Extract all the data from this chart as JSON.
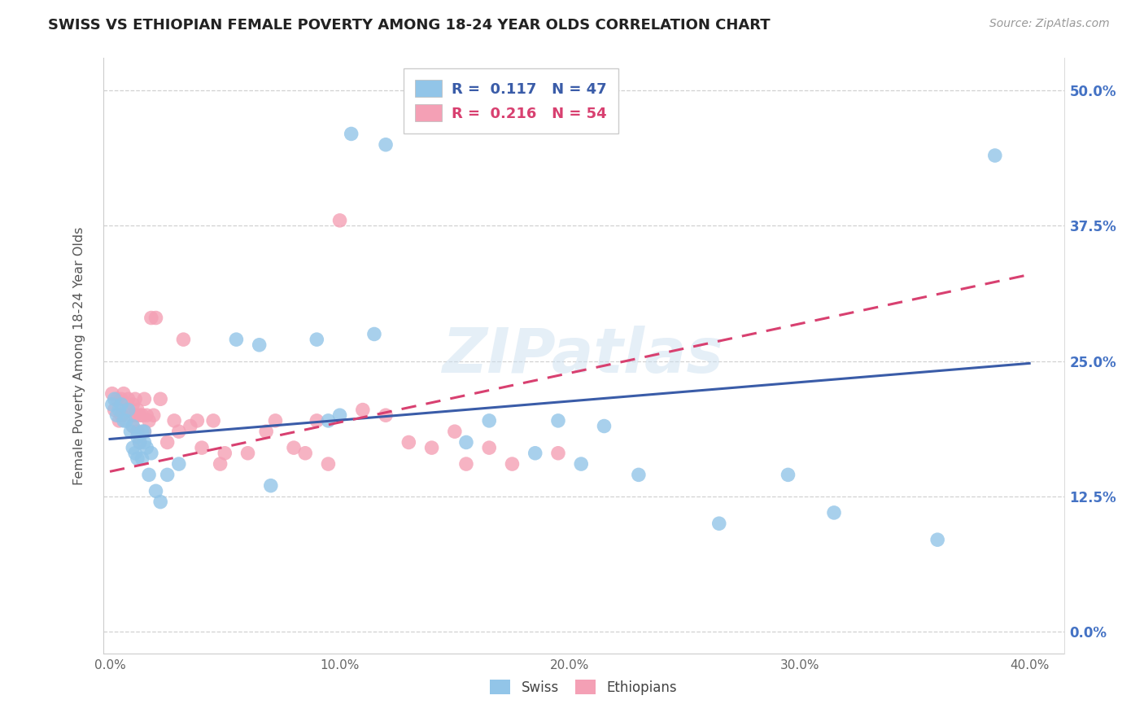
{
  "title": "SWISS VS ETHIOPIAN FEMALE POVERTY AMONG 18-24 YEAR OLDS CORRELATION CHART",
  "source": "Source: ZipAtlas.com",
  "ylabel": "Female Poverty Among 18-24 Year Olds",
  "xlabel_ticks": [
    "0.0%",
    "10.0%",
    "20.0%",
    "30.0%",
    "40.0%"
  ],
  "xlabel_vals": [
    0.0,
    0.1,
    0.2,
    0.3,
    0.4
  ],
  "ylabel_ticks": [
    "0.0%",
    "12.5%",
    "25.0%",
    "37.5%",
    "50.0%"
  ],
  "ylabel_vals": [
    0.0,
    0.125,
    0.25,
    0.375,
    0.5
  ],
  "xlim": [
    -0.003,
    0.415
  ],
  "ylim": [
    -0.02,
    0.53
  ],
  "swiss_color": "#92C5E8",
  "ethiopian_color": "#F4A0B5",
  "swiss_line_color": "#3A5CA8",
  "ethiopian_line_color": "#D84070",
  "R_swiss": "0.117",
  "N_swiss": "47",
  "R_ethiopian": "0.216",
  "N_ethiopian": "54",
  "watermark": "ZIPatlas",
  "swiss_line_start_y": 0.178,
  "swiss_line_end_y": 0.248,
  "eth_line_start_y": 0.148,
  "eth_line_end_y": 0.33,
  "swiss_x": [
    0.001,
    0.002,
    0.003,
    0.004,
    0.005,
    0.006,
    0.007,
    0.008,
    0.009,
    0.01,
    0.01,
    0.011,
    0.012,
    0.012,
    0.013,
    0.014,
    0.014,
    0.015,
    0.015,
    0.016,
    0.017,
    0.018,
    0.02,
    0.022,
    0.025,
    0.03,
    0.055,
    0.065,
    0.07,
    0.09,
    0.095,
    0.1,
    0.105,
    0.115,
    0.12,
    0.155,
    0.165,
    0.185,
    0.195,
    0.205,
    0.215,
    0.23,
    0.265,
    0.295,
    0.315,
    0.36,
    0.385
  ],
  "swiss_y": [
    0.21,
    0.215,
    0.2,
    0.205,
    0.21,
    0.195,
    0.195,
    0.205,
    0.185,
    0.19,
    0.17,
    0.165,
    0.16,
    0.18,
    0.175,
    0.185,
    0.16,
    0.175,
    0.185,
    0.17,
    0.145,
    0.165,
    0.13,
    0.12,
    0.145,
    0.155,
    0.27,
    0.265,
    0.135,
    0.27,
    0.195,
    0.2,
    0.46,
    0.275,
    0.45,
    0.175,
    0.195,
    0.165,
    0.195,
    0.155,
    0.19,
    0.145,
    0.1,
    0.145,
    0.11,
    0.085,
    0.44
  ],
  "ethiopian_x": [
    0.001,
    0.002,
    0.003,
    0.004,
    0.005,
    0.005,
    0.006,
    0.007,
    0.008,
    0.009,
    0.01,
    0.01,
    0.011,
    0.011,
    0.012,
    0.012,
    0.013,
    0.013,
    0.014,
    0.015,
    0.015,
    0.016,
    0.017,
    0.018,
    0.019,
    0.02,
    0.022,
    0.025,
    0.028,
    0.03,
    0.032,
    0.035,
    0.038,
    0.04,
    0.045,
    0.048,
    0.05,
    0.06,
    0.068,
    0.072,
    0.08,
    0.085,
    0.09,
    0.095,
    0.1,
    0.11,
    0.12,
    0.13,
    0.14,
    0.15,
    0.155,
    0.165,
    0.175,
    0.195
  ],
  "ethiopian_y": [
    0.22,
    0.205,
    0.215,
    0.195,
    0.215,
    0.2,
    0.22,
    0.205,
    0.215,
    0.2,
    0.21,
    0.19,
    0.2,
    0.215,
    0.205,
    0.185,
    0.2,
    0.175,
    0.2,
    0.215,
    0.185,
    0.2,
    0.195,
    0.29,
    0.2,
    0.29,
    0.215,
    0.175,
    0.195,
    0.185,
    0.27,
    0.19,
    0.195,
    0.17,
    0.195,
    0.155,
    0.165,
    0.165,
    0.185,
    0.195,
    0.17,
    0.165,
    0.195,
    0.155,
    0.38,
    0.205,
    0.2,
    0.175,
    0.17,
    0.185,
    0.155,
    0.17,
    0.155,
    0.165
  ]
}
